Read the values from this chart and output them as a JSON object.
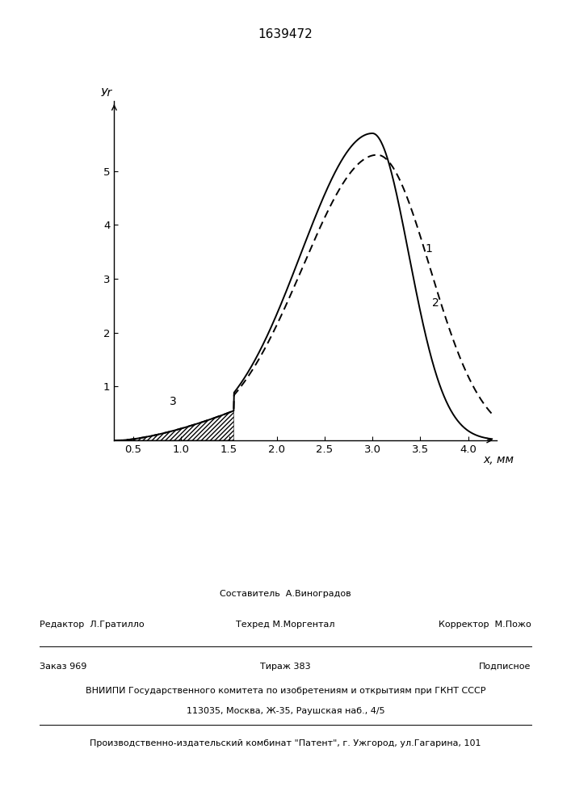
{
  "title": "1639472",
  "xlabel": "x, мм",
  "ylabel": "Уr",
  "xlim": [
    0.3,
    4.3
  ],
  "ylim": [
    0.0,
    6.3
  ],
  "xticks": [
    0.5,
    1.0,
    1.5,
    2.0,
    2.5,
    3.0,
    3.5,
    4.0
  ],
  "yticks": [
    1,
    2,
    3,
    4,
    5
  ],
  "label1": "1",
  "label2": "2",
  "label3": "3",
  "curve2_peak_x": 3.0,
  "curve2_peak_y": 5.7,
  "curve1_peak_x": 3.05,
  "curve1_peak_y": 5.3,
  "footer_sestavitel": "Составитель  А.Виноградов",
  "footer_redaktor": "Редактор  Л.Гратилло",
  "footer_tekhred": "Техред М.Моргентал",
  "footer_korrektor": "Корректор  М.Пожо",
  "footer_zakaz": "Заказ 969",
  "footer_tirazh": "Тираж 383",
  "footer_podpisnoe": "Подписное",
  "footer_vniip1": "ВНИИПИ Государственного комитета по изобретениям и открытиям при ГКНТ СССР",
  "footer_vniip2": "113035, Москва, Ж-35, Раушская наб., 4/5",
  "footer_patent": "Производственно-издательский комбинат \"Патент\", г. Ужгород, ул.Гагарина, 101"
}
